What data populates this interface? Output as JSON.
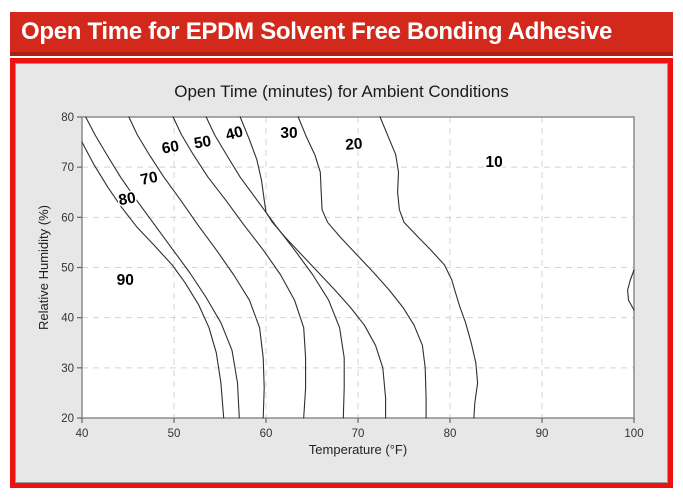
{
  "banner": {
    "title": "Open Time for EPDM Solvent Free Bonding Adhesive",
    "bg_color": "#d3291d",
    "edge_color": "#ab2013",
    "text_color": "#ffffff",
    "panel_border_color": "#ee1111"
  },
  "chart_data": {
    "type": "contour",
    "title": "Open Time (minutes) for Ambient Conditions",
    "xlabel": "Temperature (°F)",
    "ylabel": "Relative Humidity (%)",
    "xlim": [
      40,
      100
    ],
    "ylim": [
      20,
      80
    ],
    "x_ticks": [
      40,
      50,
      60,
      70,
      80,
      90,
      100
    ],
    "y_ticks": [
      20,
      30,
      40,
      50,
      60,
      70,
      80
    ],
    "grid": true,
    "grid_color": "#d4d4d4",
    "frame_color": "#8c8c8c",
    "line_color": "#2f2f2f",
    "plot_bg": "#ffffff",
    "contour_levels_note": "open time in minutes; region left of 90-line exceeds 90 min, region right of 20-line is ~10 min",
    "contours": [
      {
        "level": 90,
        "points": [
          [
            40,
            75
          ],
          [
            41.3,
            70.5
          ],
          [
            42.8,
            66
          ],
          [
            44.3,
            62
          ],
          [
            46,
            58
          ],
          [
            47.8,
            54.5
          ],
          [
            49.8,
            50.5
          ],
          [
            51.2,
            47
          ],
          [
            52.7,
            42.5
          ],
          [
            53.8,
            38
          ],
          [
            54.6,
            33
          ],
          [
            55.1,
            27
          ],
          [
            55.4,
            20
          ]
        ]
      },
      {
        "level": 80,
        "points": [
          [
            40.4,
            80
          ],
          [
            41.4,
            76.5
          ],
          [
            42.7,
            72.5
          ],
          [
            44.2,
            68
          ],
          [
            45.9,
            63.5
          ],
          [
            47.7,
            59
          ],
          [
            49.7,
            54
          ],
          [
            51.7,
            49
          ],
          [
            53.5,
            44
          ],
          [
            55.1,
            39
          ],
          [
            56.3,
            33.5
          ],
          [
            56.9,
            27
          ],
          [
            57.1,
            20
          ]
        ]
      },
      {
        "level": 70,
        "points": [
          [
            45.1,
            80
          ],
          [
            46,
            76.5
          ],
          [
            47.3,
            72.5
          ],
          [
            48.9,
            68
          ],
          [
            50.7,
            63.5
          ],
          [
            52.6,
            58.5
          ],
          [
            54.6,
            53.5
          ],
          [
            56.5,
            48.5
          ],
          [
            58.2,
            43.5
          ],
          [
            59.3,
            38
          ],
          [
            59.7,
            32
          ],
          [
            59.8,
            26
          ],
          [
            59.7,
            20
          ]
        ]
      },
      {
        "level": 60,
        "points": [
          [
            49.9,
            80
          ],
          [
            50.8,
            76.5
          ],
          [
            52.1,
            72.5
          ],
          [
            53.7,
            68
          ],
          [
            55.6,
            63.5
          ],
          [
            57.6,
            58.5
          ],
          [
            59.7,
            53.5
          ],
          [
            61.6,
            48.5
          ],
          [
            63.1,
            43.5
          ],
          [
            64.1,
            38
          ],
          [
            64.3,
            32
          ],
          [
            64.3,
            26
          ],
          [
            64.1,
            20
          ]
        ]
      },
      {
        "level": 50,
        "points": [
          [
            53.5,
            80
          ],
          [
            54.4,
            76.5
          ],
          [
            55.7,
            72.5
          ],
          [
            57.2,
            68
          ],
          [
            59,
            63.5
          ],
          [
            61,
            58.5
          ],
          [
            63.1,
            53.5
          ],
          [
            65.1,
            48.5
          ],
          [
            66.8,
            43.5
          ],
          [
            68,
            38
          ],
          [
            68.5,
            32
          ],
          [
            68.5,
            26
          ],
          [
            68.4,
            20
          ]
        ]
      },
      {
        "level": 40,
        "points": [
          [
            57.2,
            80
          ],
          [
            58.2,
            75.5
          ],
          [
            59,
            71.5
          ],
          [
            59.5,
            67.5
          ],
          [
            59.8,
            63.5
          ],
          [
            60,
            61
          ],
          [
            60.7,
            59
          ],
          [
            62.1,
            56
          ],
          [
            63.9,
            52.5
          ],
          [
            65.7,
            49
          ],
          [
            67.5,
            45.5
          ],
          [
            69.2,
            42
          ],
          [
            70.7,
            38.5
          ],
          [
            71.9,
            34.5
          ],
          [
            72.7,
            30
          ],
          [
            73,
            24
          ],
          [
            73,
            20
          ]
        ]
      },
      {
        "level": 30,
        "points": [
          [
            63.5,
            80
          ],
          [
            64.4,
            76
          ],
          [
            65.3,
            72.5
          ],
          [
            65.9,
            69
          ],
          [
            66,
            65
          ],
          [
            66.1,
            61.5
          ],
          [
            66.7,
            59
          ],
          [
            68.1,
            56
          ],
          [
            69.9,
            52.5
          ],
          [
            71.7,
            49
          ],
          [
            73.4,
            45.5
          ],
          [
            74.9,
            42
          ],
          [
            76.1,
            38.5
          ],
          [
            77,
            34.5
          ],
          [
            77.3,
            30
          ],
          [
            77.4,
            24
          ],
          [
            77.4,
            20
          ]
        ]
      },
      {
        "level": 20,
        "points": [
          [
            72.4,
            80
          ],
          [
            73.3,
            76
          ],
          [
            74.1,
            72.5
          ],
          [
            74.4,
            69
          ],
          [
            74.3,
            65
          ],
          [
            74.5,
            61.5
          ],
          [
            75,
            59
          ],
          [
            76.3,
            56.5
          ],
          [
            77.9,
            53.5
          ],
          [
            79.4,
            50.5
          ],
          [
            80.2,
            47.5
          ],
          [
            80.6,
            45
          ],
          [
            81.1,
            42
          ],
          [
            81.7,
            39
          ],
          [
            82.3,
            35
          ],
          [
            82.8,
            31
          ],
          [
            83,
            27
          ],
          [
            82.7,
            23
          ],
          [
            82.6,
            20
          ]
        ]
      },
      {
        "level": 10,
        "points": [
          [
            100,
            49.5
          ],
          [
            99.6,
            47.5
          ],
          [
            99.3,
            45.5
          ],
          [
            99.4,
            43.5
          ],
          [
            100,
            41.5
          ]
        ]
      }
    ],
    "labels": [
      {
        "text": "90",
        "t": 44.7,
        "rh": 46.5,
        "rot": 0
      },
      {
        "text": "80",
        "t": 45.0,
        "rh": 62.7,
        "rot": -10
      },
      {
        "text": "70",
        "t": 47.4,
        "rh": 66.8,
        "rot": -12
      },
      {
        "text": "60",
        "t": 49.7,
        "rh": 73.0,
        "rot": -10
      },
      {
        "text": "50",
        "t": 53.2,
        "rh": 74.0,
        "rot": -10
      },
      {
        "text": "40",
        "t": 56.7,
        "rh": 75.8,
        "rot": -15
      },
      {
        "text": "30",
        "t": 62.5,
        "rh": 75.8,
        "rot": 0
      },
      {
        "text": "20",
        "t": 69.6,
        "rh": 73.6,
        "rot": -5
      },
      {
        "text": "10",
        "t": 84.8,
        "rh": 70.0,
        "rot": 0
      }
    ]
  }
}
